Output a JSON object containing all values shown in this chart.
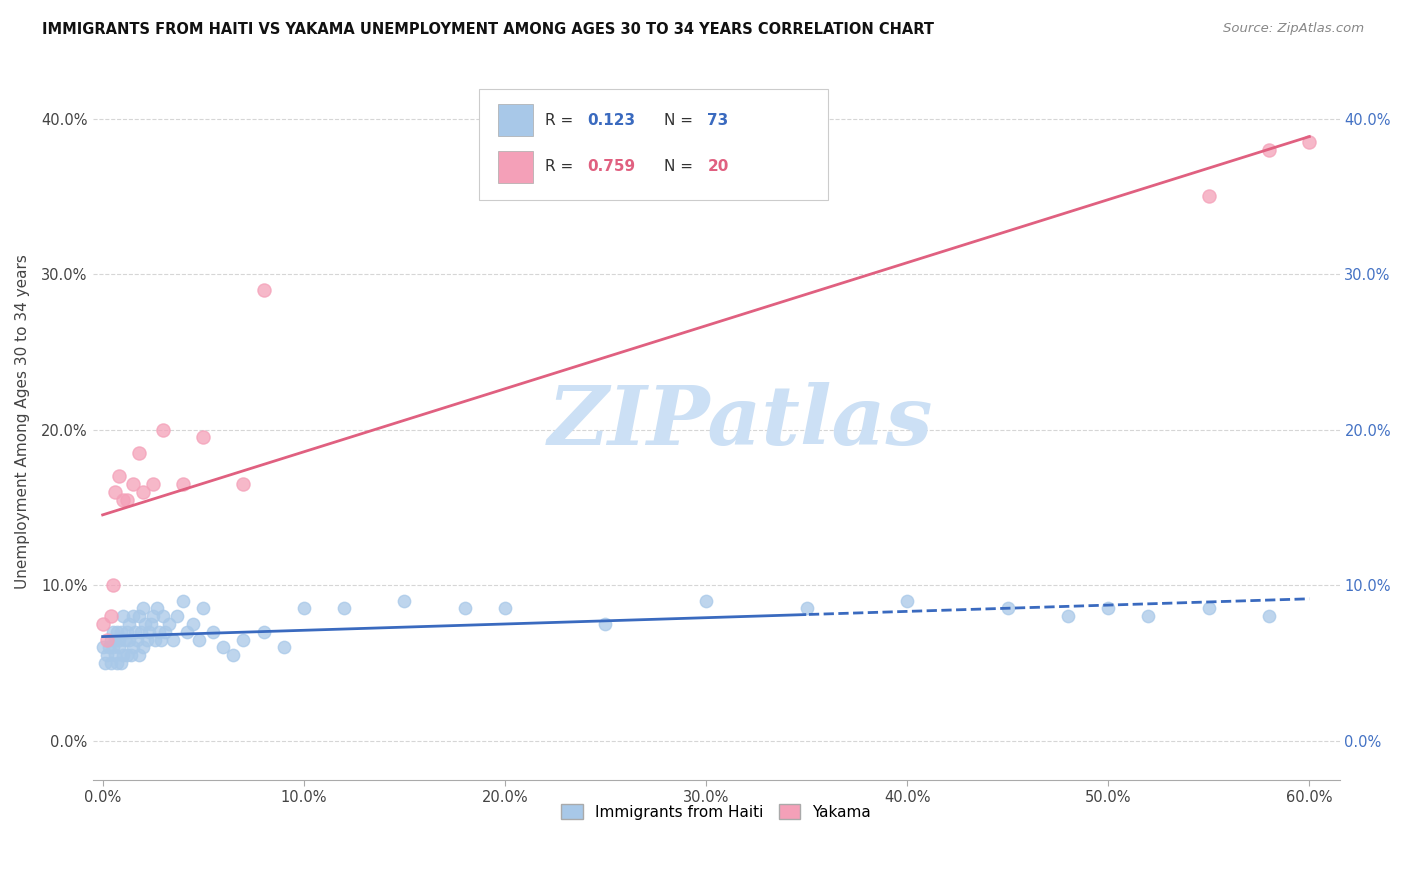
{
  "title": "IMMIGRANTS FROM HAITI VS YAKAMA UNEMPLOYMENT AMONG AGES 30 TO 34 YEARS CORRELATION CHART",
  "source": "Source: ZipAtlas.com",
  "ylabel": "Unemployment Among Ages 30 to 34 years",
  "haiti_R": 0.123,
  "haiti_N": 73,
  "yakama_R": 0.759,
  "yakama_N": 20,
  "haiti_color": "#a8c8e8",
  "yakama_color": "#f4a0b8",
  "haiti_line_color": "#3a6abf",
  "yakama_line_color": "#e06080",
  "haiti_line_style": "--",
  "yakama_line_style": "-",
  "xlim": [
    -0.005,
    0.615
  ],
  "ylim": [
    -0.025,
    0.435
  ],
  "xticks": [
    0.0,
    0.1,
    0.2,
    0.3,
    0.4,
    0.5,
    0.6
  ],
  "yticks": [
    0.0,
    0.1,
    0.2,
    0.3,
    0.4
  ],
  "haiti_scatter_x": [
    0.0,
    0.001,
    0.002,
    0.003,
    0.004,
    0.004,
    0.005,
    0.005,
    0.006,
    0.006,
    0.007,
    0.007,
    0.008,
    0.008,
    0.009,
    0.009,
    0.01,
    0.01,
    0.011,
    0.012,
    0.012,
    0.013,
    0.013,
    0.014,
    0.015,
    0.015,
    0.016,
    0.017,
    0.018,
    0.018,
    0.019,
    0.02,
    0.02,
    0.021,
    0.022,
    0.023,
    0.024,
    0.025,
    0.026,
    0.027,
    0.028,
    0.029,
    0.03,
    0.031,
    0.033,
    0.035,
    0.037,
    0.04,
    0.042,
    0.045,
    0.048,
    0.05,
    0.055,
    0.06,
    0.065,
    0.07,
    0.08,
    0.09,
    0.1,
    0.12,
    0.15,
    0.18,
    0.2,
    0.25,
    0.3,
    0.35,
    0.4,
    0.45,
    0.48,
    0.5,
    0.52,
    0.55,
    0.58
  ],
  "haiti_scatter_y": [
    0.06,
    0.05,
    0.055,
    0.06,
    0.065,
    0.05,
    0.07,
    0.06,
    0.055,
    0.065,
    0.07,
    0.05,
    0.065,
    0.06,
    0.07,
    0.05,
    0.08,
    0.055,
    0.065,
    0.07,
    0.055,
    0.065,
    0.075,
    0.055,
    0.08,
    0.06,
    0.07,
    0.065,
    0.08,
    0.055,
    0.07,
    0.085,
    0.06,
    0.075,
    0.065,
    0.07,
    0.075,
    0.08,
    0.065,
    0.085,
    0.07,
    0.065,
    0.08,
    0.07,
    0.075,
    0.065,
    0.08,
    0.09,
    0.07,
    0.075,
    0.065,
    0.085,
    0.07,
    0.06,
    0.055,
    0.065,
    0.07,
    0.06,
    0.085,
    0.085,
    0.09,
    0.085,
    0.085,
    0.075,
    0.09,
    0.085,
    0.09,
    0.085,
    0.08,
    0.085,
    0.08,
    0.085,
    0.08
  ],
  "yakama_scatter_x": [
    0.0,
    0.002,
    0.004,
    0.005,
    0.006,
    0.008,
    0.01,
    0.012,
    0.015,
    0.018,
    0.02,
    0.025,
    0.03,
    0.04,
    0.05,
    0.07,
    0.08,
    0.55,
    0.58,
    0.6
  ],
  "yakama_scatter_y": [
    0.075,
    0.065,
    0.08,
    0.1,
    0.16,
    0.17,
    0.155,
    0.155,
    0.165,
    0.185,
    0.16,
    0.165,
    0.2,
    0.165,
    0.195,
    0.165,
    0.29,
    0.35,
    0.38,
    0.385
  ],
  "watermark_text": "ZIPatlas",
  "watermark_color": "#cce0f5",
  "legend_R_color": "#3a6abf",
  "legend_yakama_R_color": "#e06080"
}
